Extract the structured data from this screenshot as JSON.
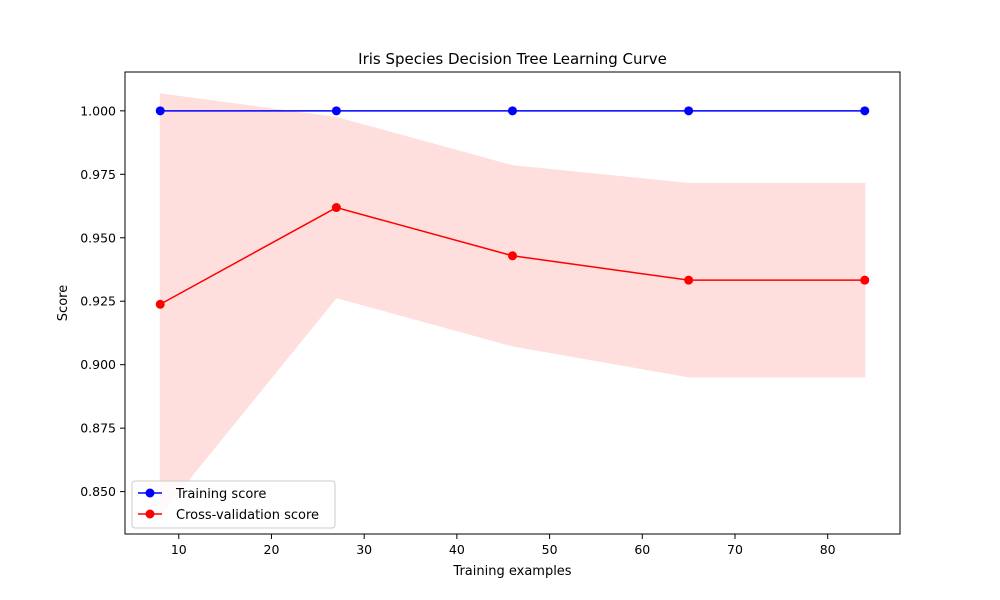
{
  "chart_data": {
    "type": "line",
    "title": "Iris Species Decision Tree Learning Curve",
    "xlabel": "Training examples",
    "ylabel": "Score",
    "x": [
      8,
      27,
      46,
      65,
      84
    ],
    "xlim": [
      4.2,
      87.8
    ],
    "ylim": [
      0.8333,
      1.0153
    ],
    "xticks": [
      10,
      20,
      30,
      40,
      50,
      60,
      70,
      80
    ],
    "yticks": [
      0.85,
      0.875,
      0.9,
      0.925,
      0.95,
      0.975,
      1.0
    ],
    "xtick_labels": [
      "10",
      "20",
      "30",
      "40",
      "50",
      "60",
      "70",
      "80"
    ],
    "ytick_labels": [
      "0.850",
      "0.875",
      "0.900",
      "0.925",
      "0.950",
      "0.975",
      "1.000"
    ],
    "grid": false,
    "legend_position": "lower-left",
    "series": [
      {
        "name": "Training score",
        "color": "#0000ff",
        "values": [
          1.0,
          1.0,
          1.0,
          1.0,
          1.0
        ]
      },
      {
        "name": "Cross-validation score",
        "color": "#ff0000",
        "values": [
          0.9238,
          0.9619,
          0.9429,
          0.9333,
          0.9333
        ],
        "band_upper": [
          1.0067,
          0.9974,
          0.9784,
          0.9714,
          0.9714
        ],
        "band_lower": [
          0.8409,
          0.9264,
          0.9074,
          0.8952,
          0.8952
        ],
        "band_color": "#ffdede"
      }
    ]
  }
}
